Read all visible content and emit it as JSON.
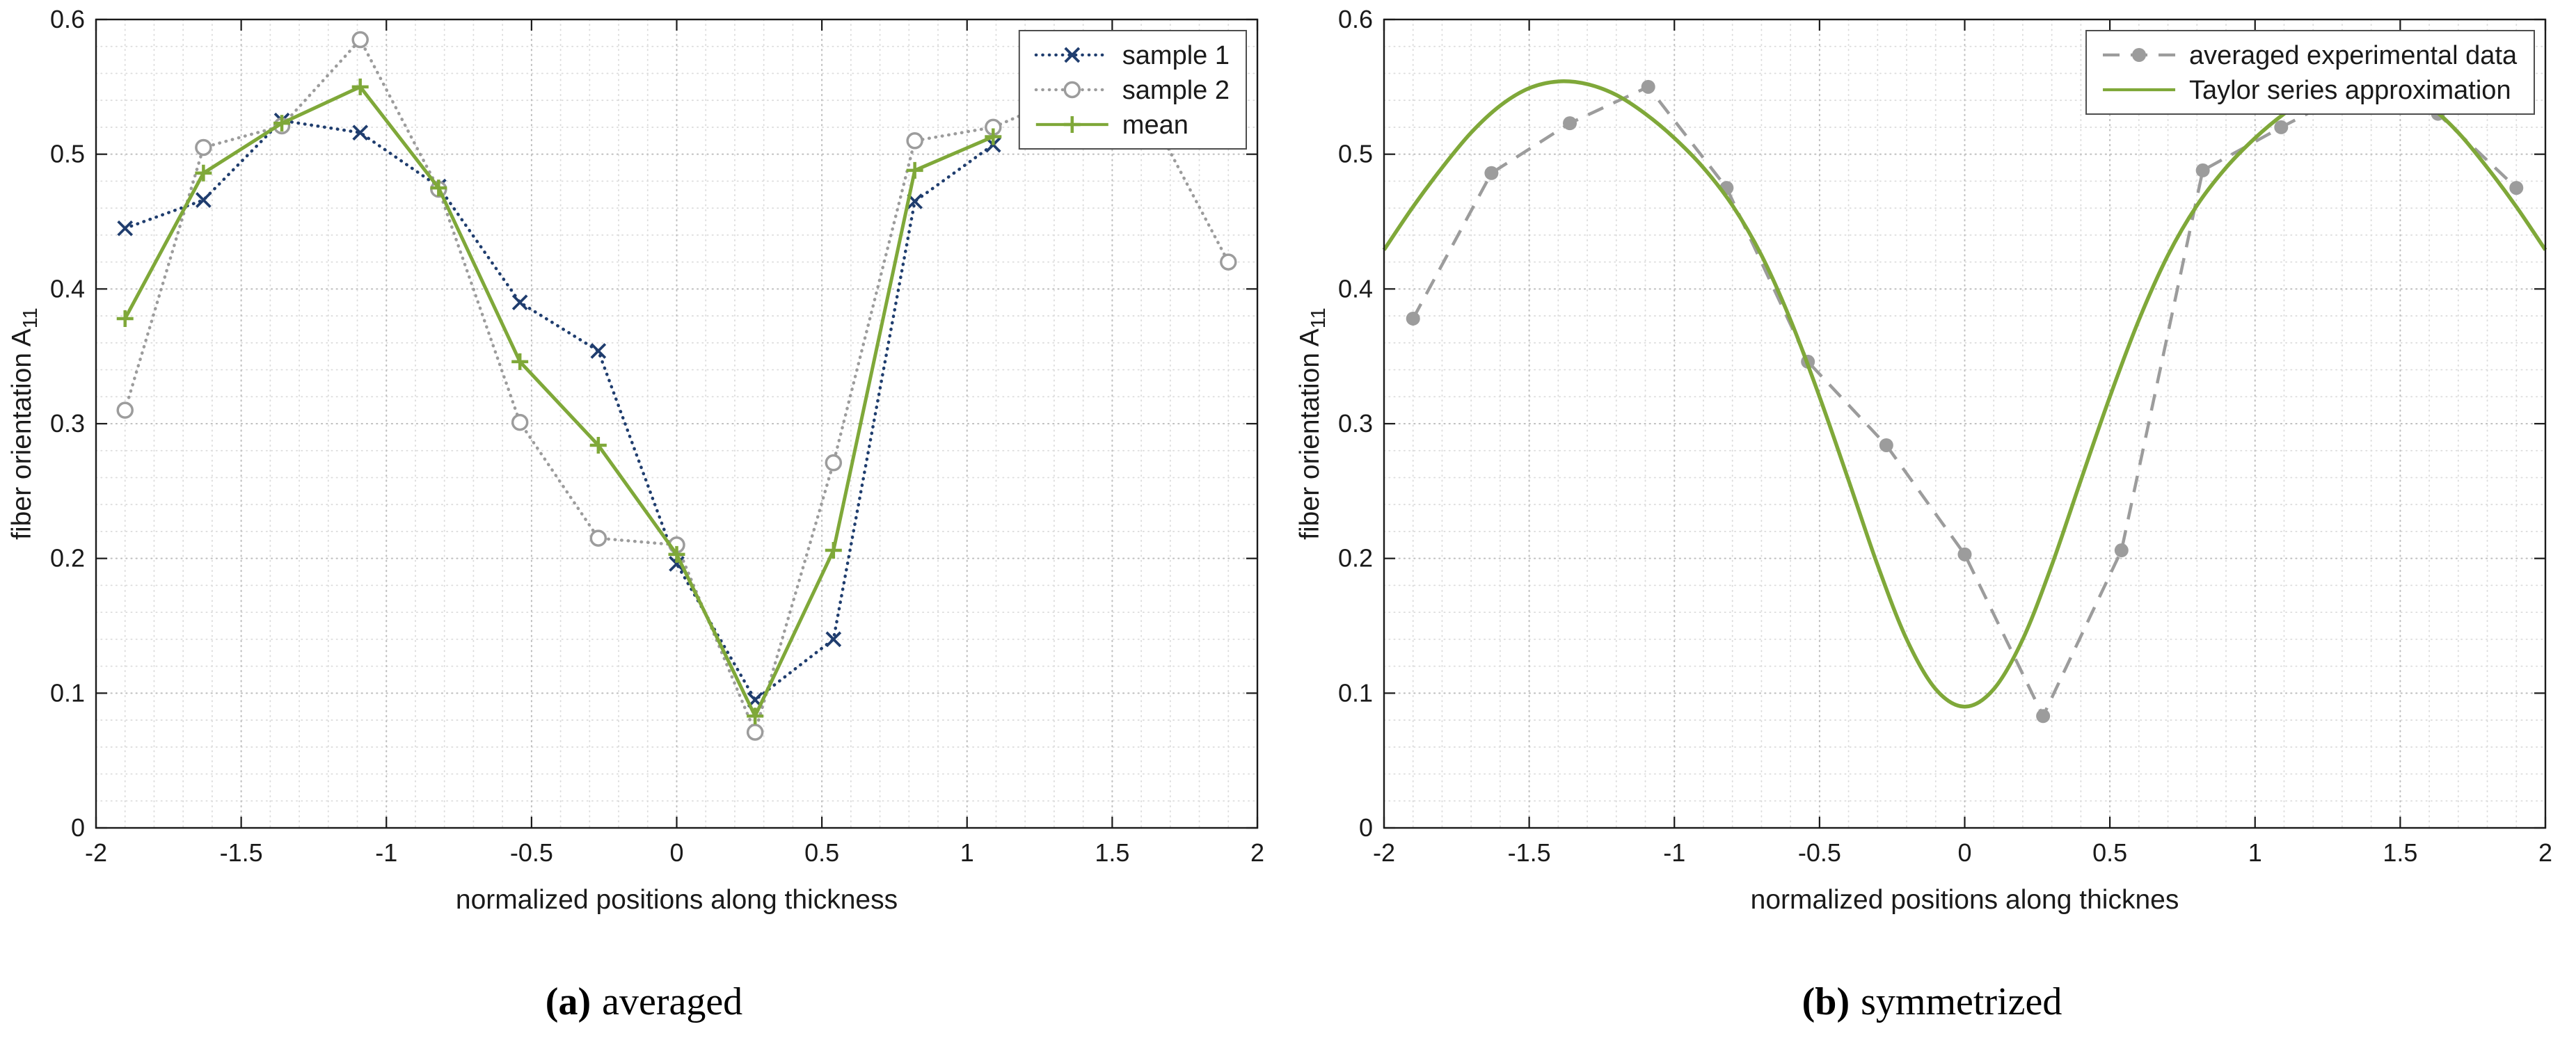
{
  "figure": {
    "captions": [
      {
        "open": "(",
        "letter": "a",
        "close": ")",
        "label": "averaged"
      },
      {
        "open": "(",
        "letter": "b",
        "close": ")",
        "label": "symmetrized"
      }
    ]
  },
  "style": {
    "background": "#ffffff",
    "axis_color": "#1a1a1a",
    "tick_label_color": "#1a1a1a",
    "grid_major_color": "#bfbfbf",
    "grid_minor_color": "#dcdcdc",
    "legend_border_color": "#4d4d4d",
    "legend_background": "#ffffff",
    "sample1_color": "#1f3d6e",
    "sample2_color": "#9c9c9c",
    "green_color": "#7fa839"
  },
  "chart_data": [
    {
      "type": "line",
      "panel": "a",
      "title": "",
      "xlabel": "normalized positions along thickness",
      "ylabel": "fiber orientation A",
      "ylabel_subscript": "11",
      "xlim": [
        -2,
        2
      ],
      "ylim": [
        0,
        0.6
      ],
      "xticks": [
        -2,
        -1.5,
        -1,
        -0.5,
        0,
        0.5,
        1,
        1.5,
        2
      ],
      "xtick_labels": [
        "-2",
        "-1.5",
        "-1",
        "-0.5",
        "0",
        "0.5",
        "1",
        "1.5",
        "2"
      ],
      "yticks": [
        0,
        0.1,
        0.2,
        0.3,
        0.4,
        0.5,
        0.6
      ],
      "ytick_labels": [
        "0",
        "0.1",
        "0.2",
        "0.3",
        "0.4",
        "0.5",
        "0.6"
      ],
      "grid": true,
      "minor_grid": true,
      "minor_x_step": 0.1,
      "minor_y_step": 0.02,
      "legend_position": "top-right",
      "series": [
        {
          "name": "sample 1",
          "color": "#1f3d6e",
          "line": "dotted",
          "marker": "x",
          "width": 4.5,
          "x": [
            -1.9,
            -1.63,
            -1.36,
            -1.09,
            -0.82,
            -0.54,
            -0.27,
            0,
            0.27,
            0.54,
            0.82,
            1.09
          ],
          "y": [
            0.445,
            0.466,
            0.525,
            0.516,
            0.476,
            0.39,
            0.354,
            0.196,
            0.095,
            0.14,
            0.465,
            0.507
          ]
        },
        {
          "name": "sample 2",
          "color": "#9c9c9c",
          "line": "dotted",
          "marker": "circle-open",
          "width": 4.5,
          "x": [
            -1.9,
            -1.63,
            -1.36,
            -1.09,
            -0.82,
            -0.54,
            -0.27,
            0,
            0.27,
            0.54,
            0.82,
            1.09,
            1.36,
            1.63,
            1.9
          ],
          "y": [
            0.31,
            0.505,
            0.521,
            0.585,
            0.474,
            0.301,
            0.215,
            0.21,
            0.071,
            0.271,
            0.51,
            0.52,
            0.545,
            0.53,
            0.42
          ]
        },
        {
          "name": "mean",
          "color": "#7fa839",
          "line": "solid",
          "marker": "+",
          "width": 5,
          "x": [
            -1.9,
            -1.63,
            -1.36,
            -1.09,
            -0.82,
            -0.54,
            -0.27,
            0,
            0.27,
            0.54,
            0.82,
            1.09
          ],
          "y": [
            0.378,
            0.486,
            0.523,
            0.55,
            0.475,
            0.346,
            0.284,
            0.203,
            0.083,
            0.206,
            0.488,
            0.513
          ]
        }
      ]
    },
    {
      "type": "line",
      "panel": "b",
      "title": "",
      "xlabel": "normalized positions along thicknes",
      "ylabel": "fiber orientation A",
      "ylabel_subscript": "11",
      "xlim": [
        -2,
        2
      ],
      "ylim": [
        0,
        0.6
      ],
      "xticks": [
        -2,
        -1.5,
        -1,
        -0.5,
        0,
        0.5,
        1,
        1.5,
        2
      ],
      "xtick_labels": [
        "-2",
        "-1.5",
        "-1",
        "-0.5",
        "0",
        "0.5",
        "1",
        "1.5",
        "2"
      ],
      "yticks": [
        0,
        0.1,
        0.2,
        0.3,
        0.4,
        0.5,
        0.6
      ],
      "ytick_labels": [
        "0",
        "0.1",
        "0.2",
        "0.3",
        "0.4",
        "0.5",
        "0.6"
      ],
      "grid": true,
      "minor_grid": true,
      "minor_x_step": 0.1,
      "minor_y_step": 0.02,
      "legend_position": "top-right",
      "series": [
        {
          "name": "averaged experimental data",
          "color": "#9c9c9c",
          "line": "dashed",
          "marker": "circle-filled",
          "width": 4.5,
          "x": [
            -1.9,
            -1.63,
            -1.36,
            -1.09,
            -0.82,
            -0.54,
            -0.27,
            0,
            0.27,
            0.54,
            0.82,
            1.09,
            1.36,
            1.63,
            1.9
          ],
          "y": [
            0.378,
            0.486,
            0.523,
            0.55,
            0.475,
            0.346,
            0.284,
            0.203,
            0.083,
            0.206,
            0.488,
            0.52,
            0.55,
            0.53,
            0.475
          ]
        },
        {
          "name": "Taylor series approximation",
          "color": "#7fa839",
          "line": "solid",
          "marker": "none",
          "width": 5.5,
          "smooth": true,
          "x": [
            -2,
            -1.9,
            -1.8,
            -1.7,
            -1.6,
            -1.5,
            -1.4,
            -1.3,
            -1.2,
            -1.1,
            -1,
            -0.9,
            -0.8,
            -0.7,
            -0.6,
            -0.5,
            -0.4,
            -0.3,
            -0.2,
            -0.1,
            0,
            0.1,
            0.2,
            0.3,
            0.4,
            0.5,
            0.6,
            0.7,
            0.8,
            0.9,
            1,
            1.1,
            1.2,
            1.3,
            1.4,
            1.5,
            1.6,
            1.7,
            1.8,
            1.9,
            2
          ],
          "y": [
            0.429,
            0.461,
            0.49,
            0.516,
            0.536,
            0.549,
            0.554,
            0.552,
            0.544,
            0.53,
            0.512,
            0.49,
            0.462,
            0.425,
            0.377,
            0.32,
            0.258,
            0.195,
            0.14,
            0.103,
            0.09,
            0.103,
            0.14,
            0.195,
            0.258,
            0.32,
            0.377,
            0.425,
            0.462,
            0.49,
            0.512,
            0.53,
            0.544,
            0.552,
            0.554,
            0.549,
            0.536,
            0.516,
            0.49,
            0.461,
            0.429
          ]
        }
      ]
    }
  ]
}
